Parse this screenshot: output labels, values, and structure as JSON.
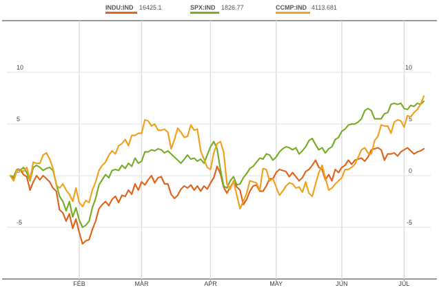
{
  "colors": {
    "indu": "#e0641b",
    "spx": "#77ad2a",
    "ccmp": "#f0a11e"
  },
  "chart_data": {
    "type": "line",
    "legend_position": "top",
    "grid": true,
    "legend": [
      {
        "name": "INDU:IND",
        "value": "16425.1"
      },
      {
        "name": "SPX:IND",
        "value": "1826.77"
      },
      {
        "name": "CCMP:IND",
        "value": "4113.681"
      }
    ],
    "x_ticks": [
      "FEB",
      "MAR",
      "APR",
      "MAY",
      "JUN",
      "JUL"
    ],
    "y_ticks": [
      "10",
      "5",
      "0",
      "-5"
    ],
    "ylim": [
      -10,
      15
    ],
    "x_range": [
      0,
      126
    ],
    "x_tick_positions": [
      21,
      40,
      61,
      81,
      101,
      120
    ],
    "series": [
      {
        "name": "INDU:IND",
        "values": [
          0.0,
          -0.3,
          0.5,
          0.6,
          0.1,
          -0.1,
          -1.4,
          -0.6,
          0.0,
          -0.4,
          0.0,
          -0.3,
          -0.6,
          -1.2,
          -1.5,
          -3.3,
          -3.6,
          -4.4,
          -3.7,
          -5.1,
          -4.2,
          -5.5,
          -6.6,
          -6.3,
          -6.2,
          -5.2,
          -4.4,
          -3.2,
          -2.8,
          -2.5,
          -2.9,
          -2.3,
          -2.0,
          -2.6,
          -1.9,
          -2.0,
          -1.4,
          -1.8,
          -0.8,
          -1.4,
          -0.6,
          -0.9,
          -0.4,
          0.0,
          -0.7,
          -0.2,
          -0.1,
          -0.8,
          -0.8,
          -1.8,
          -2.2,
          -1.9,
          -1.3,
          -1.0,
          -1.2,
          -0.9,
          -1.4,
          -1.0,
          -1.5,
          -1.0,
          -1.3,
          -0.7,
          -0.2,
          0.9,
          0.2,
          -1.1,
          -1.7,
          -1.1,
          -0.6,
          -1.1,
          -1.4,
          -2.8,
          -2.3,
          -1.5,
          -1.0,
          -0.9,
          -1.5,
          -1.5,
          -1.0,
          -0.3,
          -0.3,
          0.3,
          0.6,
          0.5,
          0.4,
          -0.1,
          0.3,
          -0.1,
          -0.5,
          -0.2,
          0.4,
          0.6,
          1.0,
          1.5,
          0.8,
          0.6,
          -0.4,
          0.1,
          -0.5,
          0.6,
          0.3,
          0.8,
          1.0,
          1.5,
          1.1,
          1.5,
          1.6,
          1.7,
          1.4,
          1.8,
          2.5,
          2.6,
          2.7,
          2.5,
          1.5,
          2.1,
          2.1,
          2.2,
          1.9,
          2.3,
          2.5,
          2.7,
          2.4,
          2.1,
          2.3,
          2.4,
          2.6
        ]
      },
      {
        "name": "SPX:IND",
        "values": [
          0.0,
          -0.1,
          0.6,
          0.5,
          0.8,
          0.3,
          -0.5,
          0.8,
          1.0,
          0.8,
          0.5,
          0.7,
          0.8,
          0.5,
          -0.8,
          -2.0,
          -2.5,
          -3.4,
          -2.5,
          -4.0,
          -3.1,
          -4.3,
          -5.0,
          -4.8,
          -4.4,
          -3.1,
          -2.2,
          -0.9,
          -0.4,
          0.1,
          -0.2,
          0.5,
          0.6,
          0.5,
          1.0,
          0.7,
          1.2,
          0.9,
          1.7,
          1.2,
          1.4,
          2.3,
          2.3,
          2.5,
          2.4,
          2.6,
          2.5,
          2.2,
          2.4,
          2.1,
          1.8,
          1.5,
          1.2,
          1.6,
          2.0,
          1.6,
          1.7,
          1.4,
          1.6,
          1.2,
          2.0,
          2.8,
          3.3,
          2.6,
          0.6,
          -1.0,
          -1.2,
          -0.5,
          -0.1,
          -0.9,
          -0.8,
          -0.2,
          0.2,
          0.7,
          0.9,
          1.3,
          1.7,
          1.6,
          2.1,
          2.0,
          1.5,
          1.8,
          2.3,
          2.6,
          2.8,
          2.7,
          2.5,
          2.7,
          2.1,
          2.4,
          2.8,
          3.4,
          3.6,
          3.0,
          2.5,
          2.7,
          2.2,
          2.6,
          2.8,
          3.5,
          3.7,
          4.3,
          4.5,
          4.9,
          5.0,
          5.0,
          5.2,
          5.5,
          6.3,
          6.5,
          6.3,
          5.5,
          5.5,
          5.5,
          6.0,
          6.1,
          6.9,
          7.0,
          6.9,
          7.0,
          6.5,
          6.4,
          6.8,
          6.7,
          7.0,
          6.9,
          7.2
        ]
      },
      {
        "name": "CCMP:IND",
        "values": [
          0.0,
          -0.5,
          0.5,
          0.6,
          0.4,
          0.8,
          -0.4,
          1.3,
          1.2,
          1.2,
          2.0,
          2.2,
          1.6,
          0.7,
          -0.9,
          -1.2,
          -0.8,
          -1.4,
          -1.8,
          -2.5,
          -1.2,
          -2.6,
          -3.0,
          -2.4,
          -2.6,
          -1.4,
          -0.6,
          0.5,
          1.0,
          1.3,
          2.0,
          2.4,
          2.1,
          2.9,
          3.1,
          3.5,
          2.9,
          3.9,
          3.9,
          4.1,
          4.1,
          5.4,
          5.3,
          4.8,
          5.0,
          4.4,
          4.4,
          4.5,
          4.2,
          2.6,
          3.5,
          4.6,
          4.2,
          3.7,
          3.8,
          4.9,
          4.4,
          4.5,
          2.4,
          1.6,
          0.8,
          0.6,
          2.2,
          3.1,
          3.3,
          2.3,
          -0.8,
          -1.3,
          -0.5,
          -1.9,
          -3.2,
          -2.5,
          -1.7,
          -0.5,
          -0.6,
          -0.7,
          -1.4,
          0.7,
          0.6,
          -0.5,
          -0.3,
          -1.1,
          -1.9,
          -1.5,
          -1.0,
          -0.7,
          -0.8,
          -1.2,
          -1.1,
          -1.6,
          -0.6,
          -1.7,
          -2.0,
          -0.8,
          0.3,
          1.0,
          -0.2,
          -1.4,
          -1.2,
          -0.8,
          -0.5,
          -0.2,
          0.6,
          0.6,
          0.8,
          1.1,
          1.8,
          2.5,
          2.7,
          2.2,
          2.1,
          3.4,
          3.8,
          4.9,
          4.8,
          4.8,
          4.1,
          5.2,
          5.4,
          5.3,
          4.7,
          5.8,
          5.7,
          6.1,
          6.4,
          6.9,
          7.7
        ]
      }
    ]
  }
}
